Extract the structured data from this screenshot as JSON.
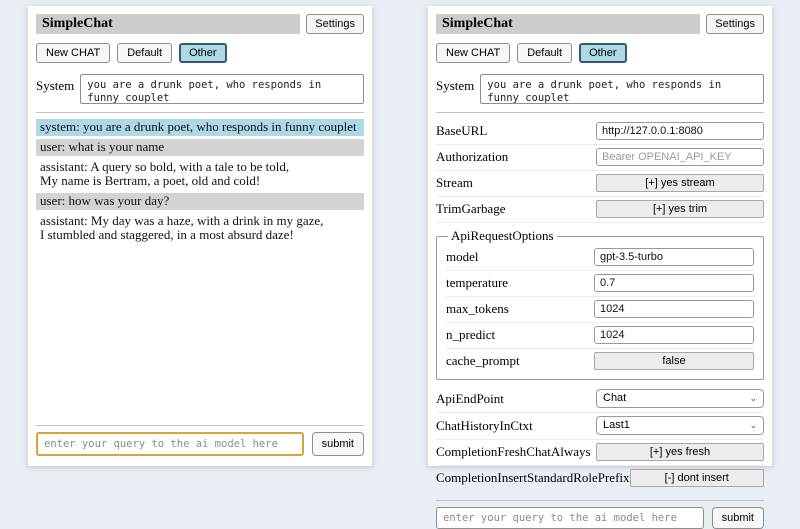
{
  "colors": {
    "page_bg": "#e9edf4",
    "titlebar_bg": "#cccccc",
    "active_tab_bg": "#add8e6",
    "active_tab_border": "#33596f",
    "system_msg_bg": "#add8e6",
    "user_msg_bg": "#d3d3d3",
    "focused_input_border": "#d9a43c"
  },
  "header": {
    "title": "SimpleChat",
    "settings_button": "Settings",
    "new_chat_button": "New CHAT",
    "session_tabs": [
      {
        "label": "Default",
        "active": false
      },
      {
        "label": "Other",
        "active": true
      }
    ],
    "system_prompt": {
      "label": "System",
      "value": "you are a drunk poet, who responds in funny couplet"
    }
  },
  "chat": {
    "messages": [
      {
        "role": "system",
        "text": "system: you are a drunk poet, who responds in funny couplet"
      },
      {
        "role": "user",
        "text": "user: what is your name"
      },
      {
        "role": "assistant",
        "text": "assistant: A query so bold, with a tale to be told,\nMy name is Bertram, a poet, old and cold!"
      },
      {
        "role": "user",
        "text": "user: how was your day?"
      },
      {
        "role": "assistant",
        "text": "assistant: My day was a haze, with a drink in my gaze,\nI stumbled and staggered, in a most absurd daze!"
      }
    ]
  },
  "settings": {
    "rows": [
      {
        "label": "BaseURL",
        "type": "input",
        "value": "http://127.0.0.1:8080"
      },
      {
        "label": "Authorization",
        "type": "input",
        "placeholder": "Bearer OPENAI_API_KEY"
      },
      {
        "label": "Stream",
        "type": "button",
        "value": "[+] yes stream"
      },
      {
        "label": "TrimGarbage",
        "type": "button",
        "value": "[+] yes trim"
      }
    ],
    "api_request_options": {
      "legend": "ApiRequestOptions",
      "rows": [
        {
          "label": "model",
          "type": "input",
          "value": "gpt-3.5-turbo"
        },
        {
          "label": "temperature",
          "type": "input",
          "value": "0.7"
        },
        {
          "label": "max_tokens",
          "type": "input",
          "value": "1024"
        },
        {
          "label": "n_predict",
          "type": "input",
          "value": "1024"
        },
        {
          "label": "cache_prompt",
          "type": "button",
          "value": "false"
        }
      ]
    },
    "bottom_rows": [
      {
        "label": "ApiEndPoint",
        "type": "select",
        "value": "Chat"
      },
      {
        "label": "ChatHistoryInCtxt",
        "type": "select",
        "value": "Last1"
      },
      {
        "label": "CompletionFreshChatAlways",
        "type": "button",
        "value": "[+] yes fresh"
      },
      {
        "label": "CompletionInsertStandardRolePrefix",
        "type": "button",
        "value": "[-] dont insert"
      }
    ]
  },
  "query": {
    "placeholder": "enter your query to the ai model here",
    "submit_button": "submit"
  }
}
